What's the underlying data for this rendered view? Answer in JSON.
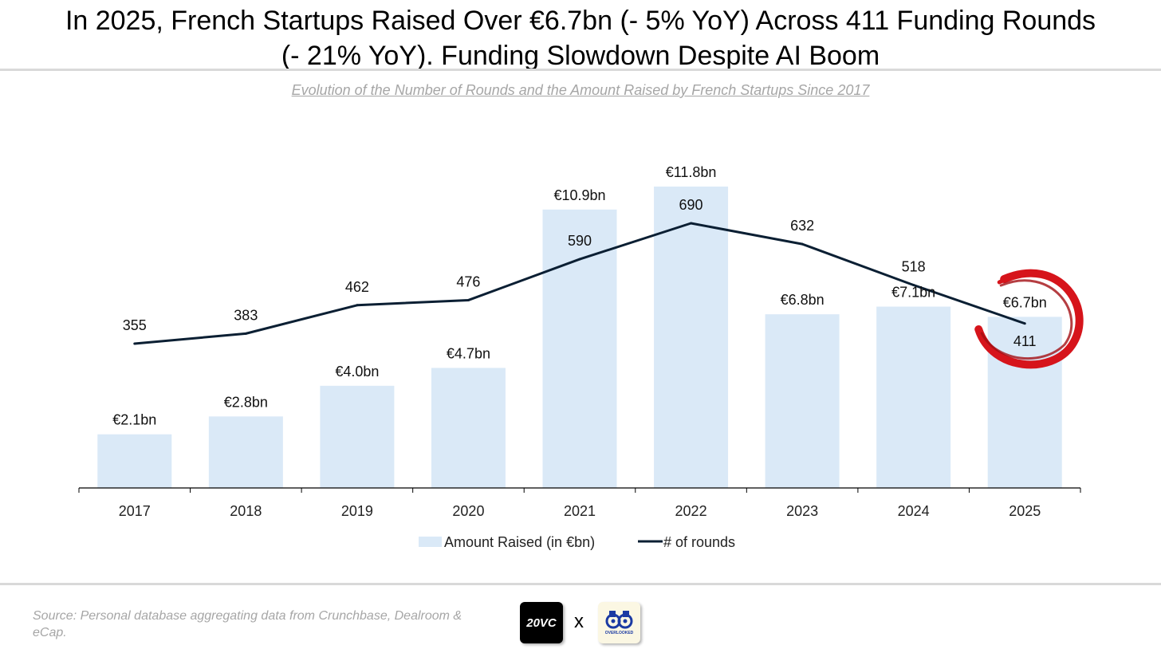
{
  "header": {
    "title_line1": "In 2025, French Startups Raised Over €6.7bn (- 5% YoY) Across 411 Funding Rounds",
    "title_line2": "(- 21% YoY). Funding Slowdown Despite AI Boom",
    "subtitle": "Evolution of the Number of Rounds and the Amount Raised by French Startups Since 2017"
  },
  "chart_data": {
    "type": "bar",
    "categories": [
      "2017",
      "2018",
      "2019",
      "2020",
      "2021",
      "2022",
      "2023",
      "2024",
      "2025"
    ],
    "series": [
      {
        "name": "Amount Raised (in €bn)",
        "type": "bar",
        "values": [
          2.1,
          2.8,
          4.0,
          4.7,
          10.9,
          11.8,
          6.8,
          7.1,
          6.7
        ],
        "labels": [
          "€2.1bn",
          "€2.8bn",
          "€4.0bn",
          "€4.7bn",
          "€10.9bn",
          "€11.8bn",
          "€6.8bn",
          "€7.1bn",
          "€6.7bn"
        ],
        "color": "#dae9f7"
      },
      {
        "name": "# of rounds",
        "type": "line",
        "values": [
          355,
          383,
          462,
          476,
          590,
          690,
          632,
          518,
          411
        ],
        "labels": [
          "355",
          "383",
          "462",
          "476",
          "590",
          "690",
          "632",
          "518",
          "411"
        ],
        "color": "#0b1f33"
      }
    ],
    "bar_axis_range": [
      0,
      12
    ],
    "line_axis_range": [
      -100,
      800
    ],
    "grid": false,
    "legend_position": "bottom",
    "highlight": {
      "category": "2025",
      "marker": "red-brush-circle",
      "color": "#d6141b"
    }
  },
  "footer": {
    "source": "Source: Personal database aggregating data from Crunchbase, Dealroom & eCap.",
    "logo_left": "20VC",
    "separator": "x",
    "logo_right": "OVERLOOKED"
  }
}
